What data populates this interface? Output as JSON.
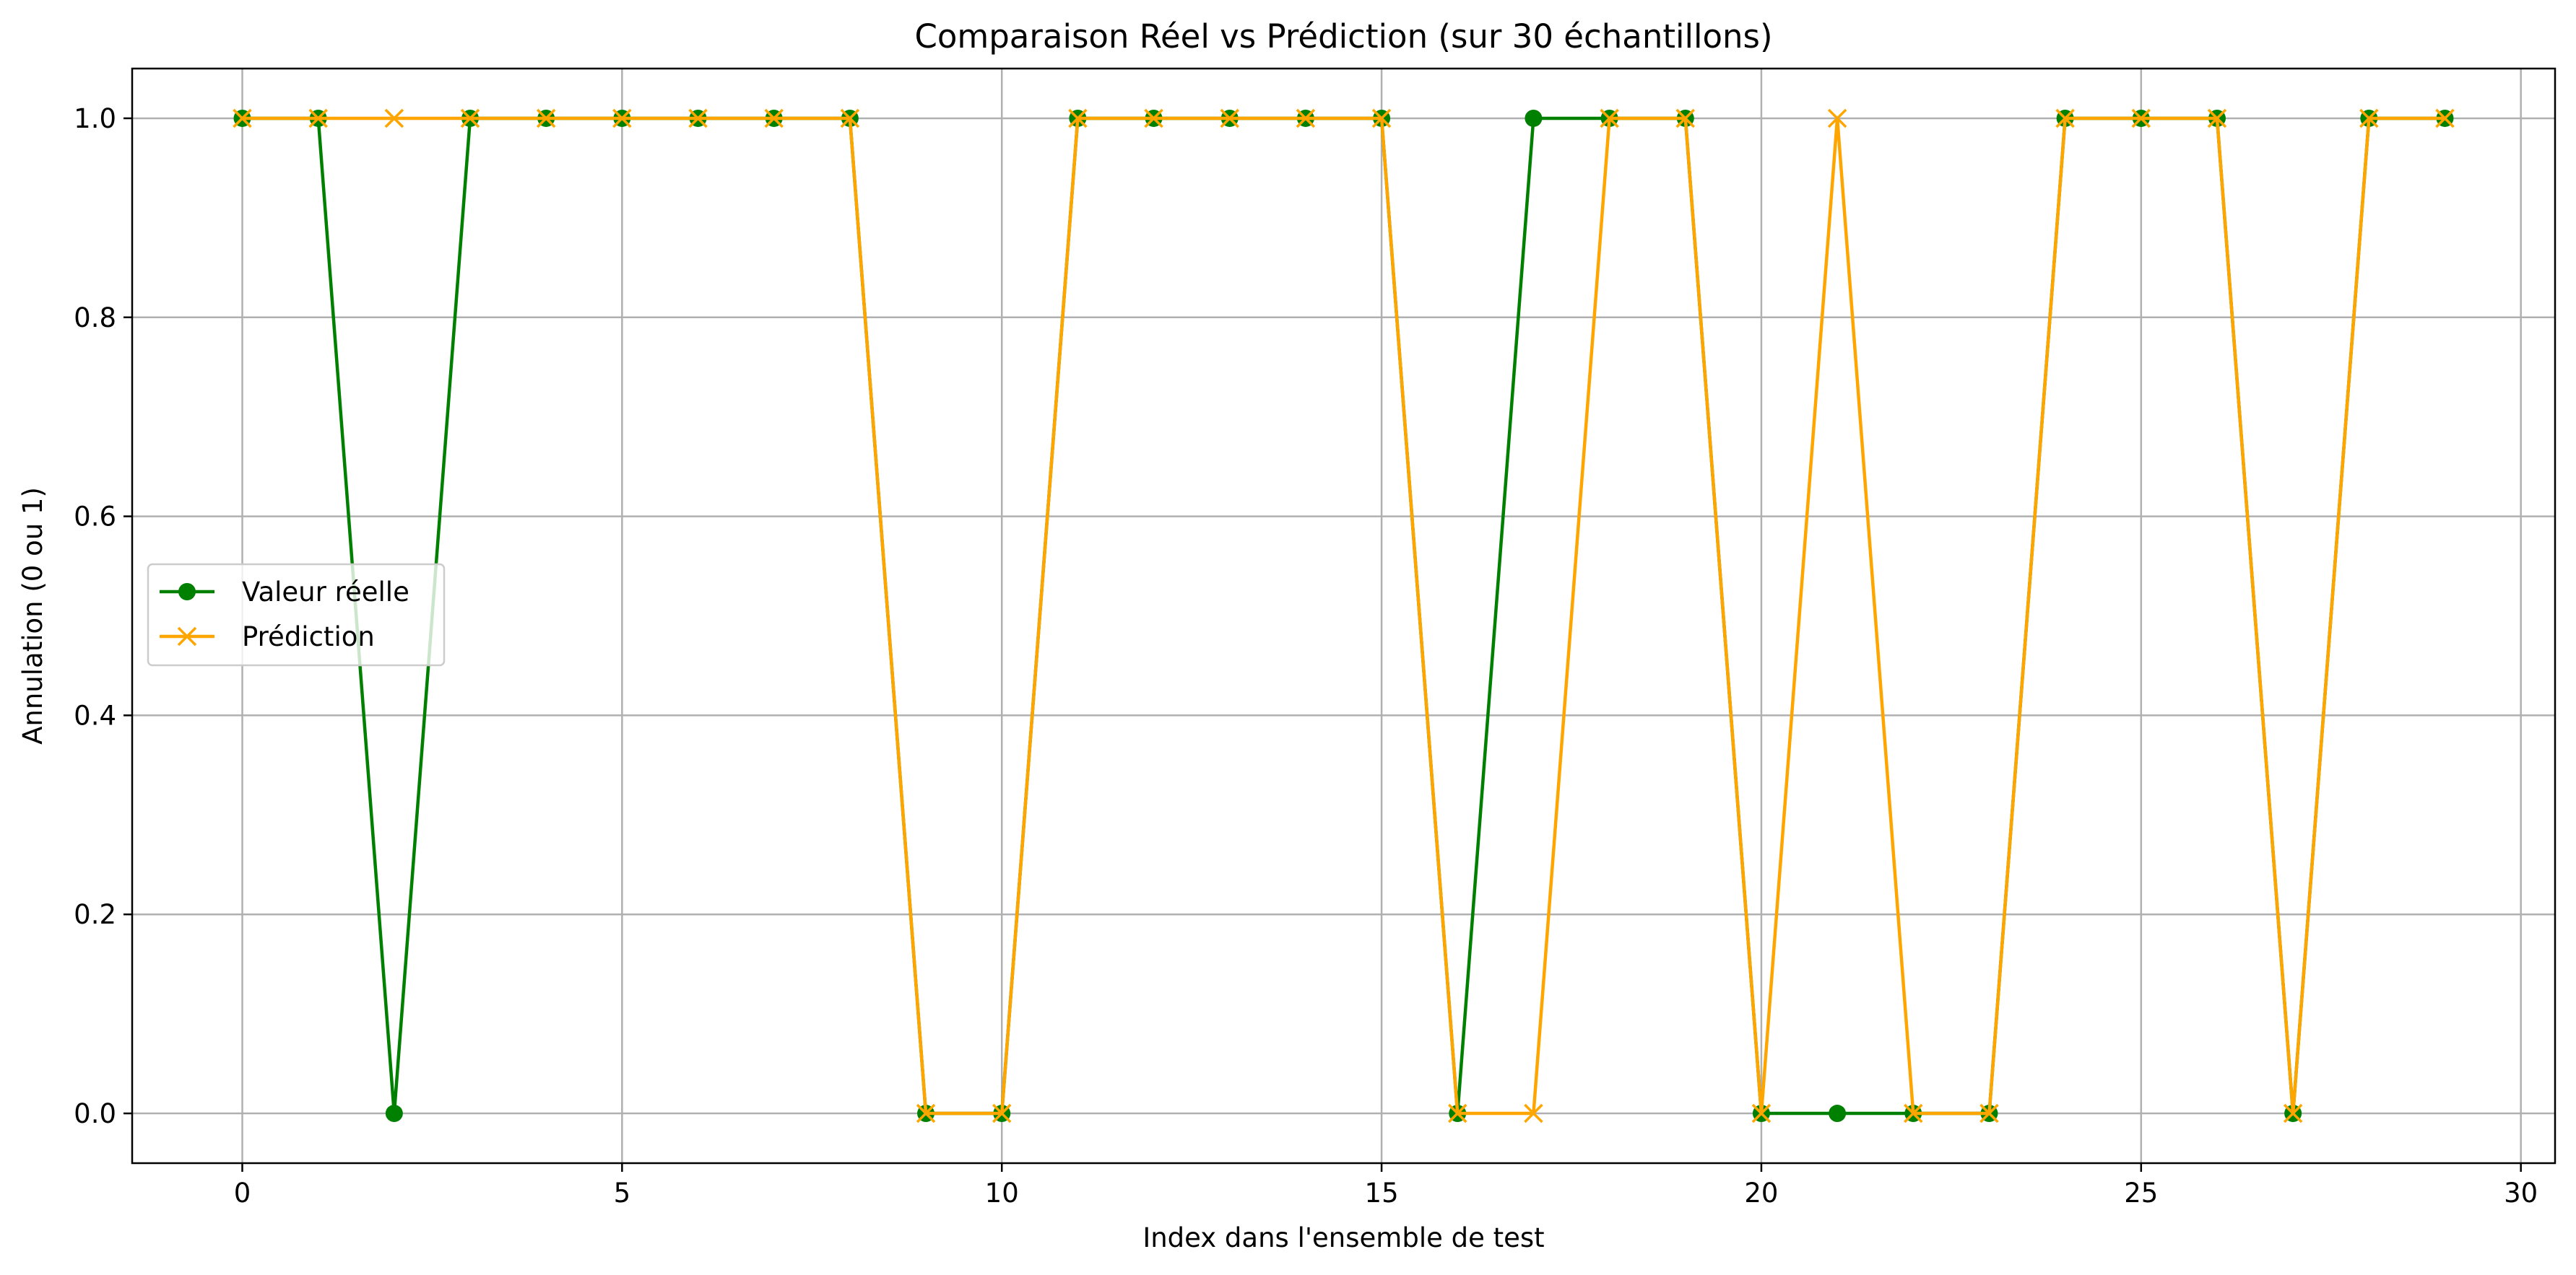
{
  "chart_data": {
    "type": "line",
    "title": "Comparaison Réel vs Prédiction (sur 30 échantillons)",
    "xlabel": "Index dans l'ensemble de test",
    "ylabel": "Annulation (0 ou 1)",
    "xlim": [
      -1.45,
      30.45
    ],
    "ylim": [
      -0.05,
      1.05
    ],
    "xticks": [
      0,
      5,
      10,
      15,
      20,
      25,
      30
    ],
    "xtick_labels": [
      "0",
      "5",
      "10",
      "15",
      "20",
      "25",
      "30"
    ],
    "yticks": [
      0.0,
      0.2,
      0.4,
      0.6,
      0.8,
      1.0
    ],
    "ytick_labels": [
      "0.0",
      "0.2",
      "0.4",
      "0.6",
      "0.8",
      "1.0"
    ],
    "grid": true,
    "legend_position": "center-left",
    "x": [
      0,
      1,
      2,
      3,
      4,
      5,
      6,
      7,
      8,
      9,
      10,
      11,
      12,
      13,
      14,
      15,
      16,
      17,
      18,
      19,
      20,
      21,
      22,
      23,
      24,
      25,
      26,
      27,
      28,
      29
    ],
    "series": [
      {
        "name": "Valeur réelle",
        "color": "#008000",
        "marker": "circle",
        "values": [
          1,
          1,
          0,
          1,
          1,
          1,
          1,
          1,
          1,
          0,
          0,
          1,
          1,
          1,
          1,
          1,
          0,
          1,
          1,
          1,
          0,
          0,
          0,
          0,
          1,
          1,
          1,
          0,
          1,
          1
        ]
      },
      {
        "name": "Prédiction",
        "color": "#FFA500",
        "marker": "x",
        "values": [
          1,
          1,
          1,
          1,
          1,
          1,
          1,
          1,
          1,
          0,
          0,
          1,
          1,
          1,
          1,
          1,
          0,
          0,
          1,
          1,
          0,
          1,
          0,
          0,
          1,
          1,
          1,
          0,
          1,
          1
        ]
      }
    ]
  }
}
